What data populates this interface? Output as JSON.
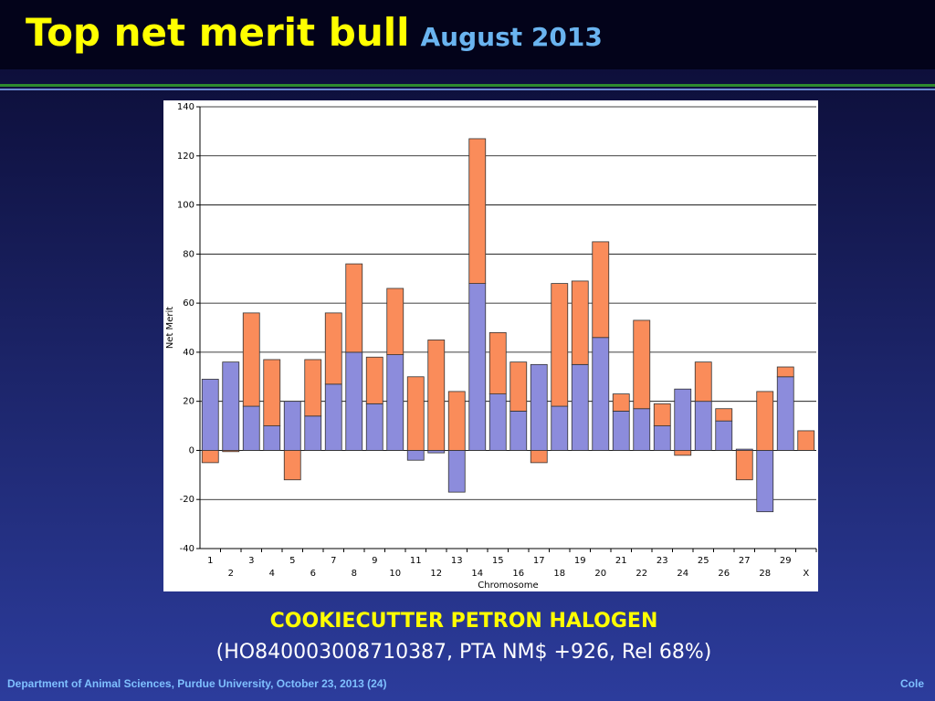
{
  "slide": {
    "title": "Top net merit bull",
    "subtitle": "August 2013",
    "caption": {
      "name": "COOKIECUTTER PETRON HALOGEN",
      "details": "(HO840003008710387, PTA NM$ +926, Rel 68%)"
    },
    "footer": {
      "left": "Department of Animal Sciences, Purdue University, October 23, 2013 (24)",
      "right": "Cole"
    }
  },
  "chart_data": {
    "type": "bar",
    "stacked": true,
    "xlabel": "Chromosome",
    "ylabel": "Net Merit",
    "categories": [
      "1",
      "2",
      "3",
      "4",
      "5",
      "6",
      "7",
      "8",
      "9",
      "10",
      "11",
      "12",
      "13",
      "14",
      "15",
      "16",
      "17",
      "18",
      "19",
      "20",
      "21",
      "22",
      "23",
      "24",
      "25",
      "26",
      "27",
      "28",
      "29",
      "X"
    ],
    "series": [
      {
        "color": "#8c8cdc",
        "values": [
          29,
          36,
          18,
          10,
          20,
          14,
          27,
          40,
          19,
          39,
          -4,
          -1,
          -17,
          68,
          23,
          16,
          35,
          18,
          35,
          46,
          16,
          17,
          10,
          25,
          20,
          12,
          0.5,
          -25,
          30,
          0
        ]
      },
      {
        "color": "#fa8c5a",
        "values": [
          -5,
          -0.5,
          38,
          27,
          -12,
          23,
          29,
          36,
          19,
          27,
          30,
          45,
          24,
          59,
          25,
          20,
          -5,
          50,
          34,
          39,
          7,
          36,
          9,
          -2,
          16,
          5,
          -12,
          24,
          4,
          8
        ]
      }
    ],
    "ylim": [
      -40,
      140
    ],
    "yticks": [
      -40,
      -20,
      0,
      20,
      40,
      60,
      80,
      100,
      120,
      140
    ],
    "grid": true
  }
}
